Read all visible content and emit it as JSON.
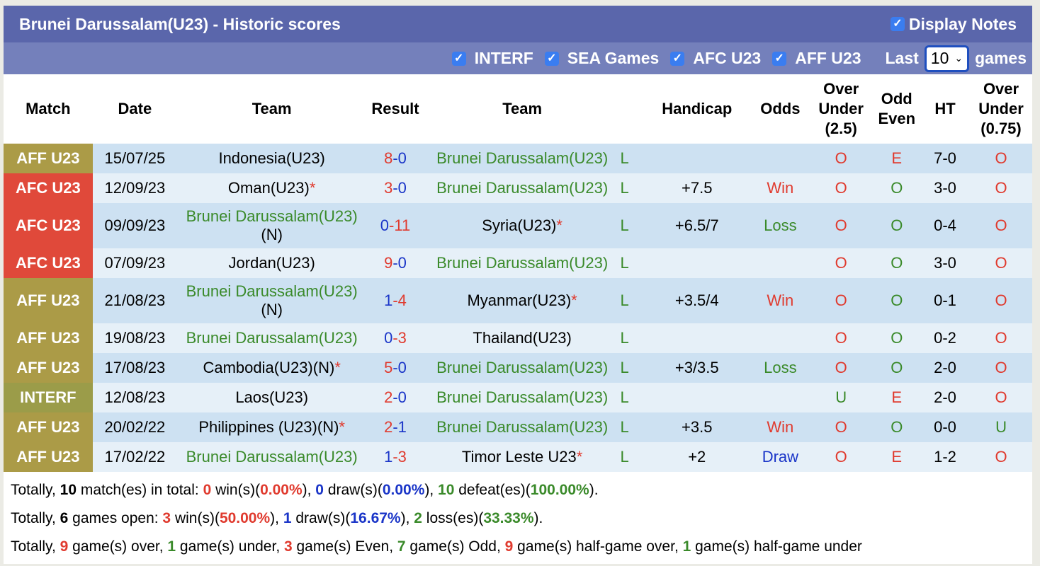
{
  "title": "Brunei Darussalam(U23) - Historic scores",
  "display_notes": "Display Notes",
  "filters": [
    "INTERF",
    "SEA Games",
    "AFC U23",
    "AFF U23"
  ],
  "last_label": "Last",
  "last_value": "10",
  "games_label": "games",
  "headers": [
    "Match",
    "Date",
    "Team",
    "Result",
    "Team",
    "",
    "Handicap",
    "Odds",
    "Over Under (2.5)",
    "Odd Even",
    "HT",
    "Over Under (0.75)"
  ],
  "colors": {
    "AFF U23": "#ab9b47",
    "AFC U23": "#e0493a",
    "INTERF": "#9b9c49"
  },
  "rows": [
    {
      "match": "AFF U23",
      "date": "15/07/25",
      "home": "Indonesia(U23)",
      "hs": "8",
      "as": "0",
      "away": "Brunei Darussalam(U23)",
      "res": "L",
      "hcp": "",
      "odds": "",
      "ou": "O",
      "oe": "E",
      "ht": "7-0",
      "ou2": "O"
    },
    {
      "match": "AFC U23",
      "date": "12/09/23",
      "home": "Oman(U23)",
      "hstar": true,
      "hs": "3",
      "as": "0",
      "away": "Brunei Darussalam(U23)",
      "res": "L",
      "hcp": "+7.5",
      "odds": "Win",
      "ou": "O",
      "oe": "O",
      "ht": "3-0",
      "ou2": "O"
    },
    {
      "match": "AFC U23",
      "date": "09/09/23",
      "home": "Brunei Darussalam(U23)",
      "hnote": "(N)",
      "hs": "0",
      "as": "11",
      "away": "Syria(U23)",
      "astar": true,
      "res": "L",
      "hcp": "+6.5/7",
      "odds": "Loss",
      "ou": "O",
      "oe": "O",
      "ht": "0-4",
      "ou2": "O"
    },
    {
      "match": "AFC U23",
      "date": "07/09/23",
      "home": "Jordan(U23)",
      "hs": "9",
      "as": "0",
      "away": "Brunei Darussalam(U23)",
      "res": "L",
      "hcp": "",
      "odds": "",
      "ou": "O",
      "oe": "O",
      "ht": "3-0",
      "ou2": "O"
    },
    {
      "match": "AFF U23",
      "date": "21/08/23",
      "home": "Brunei Darussalam(U23)",
      "hnote": "(N)",
      "hs": "1",
      "as": "4",
      "away": "Myanmar(U23)",
      "astar": true,
      "res": "L",
      "hcp": "+3.5/4",
      "odds": "Win",
      "ou": "O",
      "oe": "O",
      "ht": "0-1",
      "ou2": "O"
    },
    {
      "match": "AFF U23",
      "date": "19/08/23",
      "home": "Brunei Darussalam(U23)",
      "hs": "0",
      "as": "3",
      "away": "Thailand(U23)",
      "res": "L",
      "hcp": "",
      "odds": "",
      "ou": "O",
      "oe": "O",
      "ht": "0-2",
      "ou2": "O"
    },
    {
      "match": "AFF U23",
      "date": "17/08/23",
      "home": "Cambodia(U23)(N)",
      "hstar": true,
      "hs": "5",
      "as": "0",
      "away": "Brunei Darussalam(U23)",
      "res": "L",
      "hcp": "+3/3.5",
      "odds": "Loss",
      "ou": "O",
      "oe": "O",
      "ht": "2-0",
      "ou2": "O"
    },
    {
      "match": "INTERF",
      "date": "12/08/23",
      "home": "Laos(U23)",
      "hs": "2",
      "as": "0",
      "away": "Brunei Darussalam(U23)",
      "res": "L",
      "hcp": "",
      "odds": "",
      "ou": "U",
      "oe": "E",
      "ht": "2-0",
      "ou2": "O"
    },
    {
      "match": "AFF U23",
      "date": "20/02/22",
      "home": "Philippines (U23)(N)",
      "hstar": true,
      "hs": "2",
      "as": "1",
      "away": "Brunei Darussalam(U23)",
      "res": "L",
      "hcp": "+3.5",
      "odds": "Win",
      "ou": "O",
      "oe": "O",
      "ht": "0-0",
      "ou2": "U"
    },
    {
      "match": "AFF U23",
      "date": "17/02/22",
      "home": "Brunei Darussalam(U23)",
      "hs": "1",
      "as": "3",
      "away": "Timor Leste U23",
      "astar": true,
      "res": "L",
      "hcp": "+2",
      "odds": "Draw",
      "ou": "O",
      "oe": "E",
      "ht": "1-2",
      "ou2": "O"
    }
  ],
  "summary": [
    [
      [
        "Totally, ",
        ""
      ],
      [
        "10",
        "b"
      ],
      [
        " match(es) in total: ",
        ""
      ],
      [
        "0",
        "red"
      ],
      [
        " win(s)(",
        ""
      ],
      [
        "0.00%",
        "red"
      ],
      [
        "), ",
        ""
      ],
      [
        "0",
        "blue"
      ],
      [
        " draw(s)(",
        ""
      ],
      [
        "0.00%",
        "blue"
      ],
      [
        "), ",
        ""
      ],
      [
        "10",
        "green"
      ],
      [
        " defeat(es)(",
        ""
      ],
      [
        "100.00%",
        "green"
      ],
      [
        ").",
        ""
      ]
    ],
    [
      [
        "Totally, ",
        ""
      ],
      [
        "6",
        "b"
      ],
      [
        " games open: ",
        ""
      ],
      [
        "3",
        "red"
      ],
      [
        " win(s)(",
        ""
      ],
      [
        "50.00%",
        "red"
      ],
      [
        "), ",
        ""
      ],
      [
        "1",
        "blue"
      ],
      [
        " draw(s)(",
        ""
      ],
      [
        "16.67%",
        "blue"
      ],
      [
        "), ",
        ""
      ],
      [
        "2",
        "green"
      ],
      [
        " loss(es)(",
        ""
      ],
      [
        "33.33%",
        "green"
      ],
      [
        ").",
        ""
      ]
    ],
    [
      [
        "Totally, ",
        ""
      ],
      [
        "9",
        "red"
      ],
      [
        " game(s) over, ",
        ""
      ],
      [
        "1",
        "green"
      ],
      [
        " game(s) under, ",
        ""
      ],
      [
        "3",
        "red"
      ],
      [
        " game(s) Even, ",
        ""
      ],
      [
        "7",
        "green"
      ],
      [
        " game(s) Odd, ",
        ""
      ],
      [
        "9",
        "red"
      ],
      [
        " game(s) half-game over, ",
        ""
      ],
      [
        "1",
        "green"
      ],
      [
        " game(s) half-game under",
        ""
      ]
    ]
  ]
}
